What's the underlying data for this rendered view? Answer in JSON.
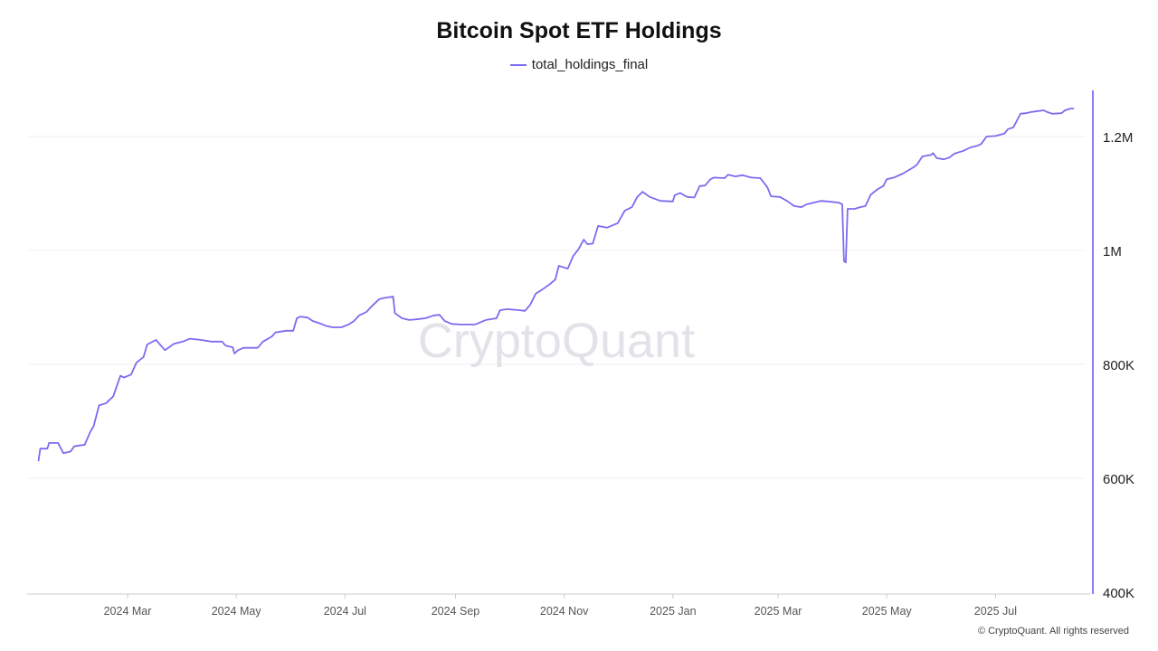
{
  "chart_data": {
    "type": "line",
    "title": "Bitcoin Spot ETF Holdings",
    "legend_position": "top-center",
    "grid": true,
    "y_axis_side": "right",
    "ylim": [
      400000,
      1280000
    ],
    "y_ticks": [
      400000,
      600000,
      800000,
      1000000,
      1200000
    ],
    "y_tick_labels": [
      "400K",
      "600K",
      "800K",
      "1M",
      "1.2M"
    ],
    "x_ticks": [
      "2024-03-01",
      "2024-05-01",
      "2024-07-01",
      "2024-09-01",
      "2024-11-01",
      "2025-01-01",
      "2025-03-01",
      "2025-05-01",
      "2025-07-01"
    ],
    "x_tick_labels": [
      "2024 Mar",
      "2024 May",
      "2024 Jul",
      "2024 Sep",
      "2024 Nov",
      "2025 Jan",
      "2025 Mar",
      "2025 May",
      "2025 Jul"
    ],
    "series": [
      {
        "name": "total_holdings_final",
        "color": "#7b6cf0",
        "points": [
          [
            "2024-01-11",
            630000
          ],
          [
            "2024-01-12",
            652000
          ],
          [
            "2024-01-16",
            652000
          ],
          [
            "2024-01-17",
            662000
          ],
          [
            "2024-01-22",
            662000
          ],
          [
            "2024-01-25",
            644000
          ],
          [
            "2024-01-29",
            647000
          ],
          [
            "2024-01-31",
            656000
          ],
          [
            "2024-02-06",
            659000
          ],
          [
            "2024-02-09",
            681000
          ],
          [
            "2024-02-11",
            692000
          ],
          [
            "2024-02-14",
            728000
          ],
          [
            "2024-02-18",
            732000
          ],
          [
            "2024-02-22",
            744000
          ],
          [
            "2024-02-26",
            780000
          ],
          [
            "2024-02-28",
            777000
          ],
          [
            "2024-03-03",
            782000
          ],
          [
            "2024-03-06",
            803000
          ],
          [
            "2024-03-10",
            813000
          ],
          [
            "2024-03-12",
            835000
          ],
          [
            "2024-03-17",
            843000
          ],
          [
            "2024-03-20",
            832000
          ],
          [
            "2024-03-22",
            825000
          ],
          [
            "2024-03-27",
            836000
          ],
          [
            "2024-04-01",
            840000
          ],
          [
            "2024-04-05",
            845000
          ],
          [
            "2024-04-11",
            843000
          ],
          [
            "2024-04-17",
            840000
          ],
          [
            "2024-04-23",
            840000
          ],
          [
            "2024-04-25",
            833000
          ],
          [
            "2024-04-29",
            830000
          ],
          [
            "2024-04-30",
            819000
          ],
          [
            "2024-05-02",
            825000
          ],
          [
            "2024-05-05",
            829000
          ],
          [
            "2024-05-13",
            829000
          ],
          [
            "2024-05-16",
            840000
          ],
          [
            "2024-05-21",
            849000
          ],
          [
            "2024-05-23",
            856000
          ],
          [
            "2024-05-29",
            859000
          ],
          [
            "2024-06-02",
            859000
          ],
          [
            "2024-06-04",
            881000
          ],
          [
            "2024-06-06",
            884000
          ],
          [
            "2024-06-10",
            882000
          ],
          [
            "2024-06-13",
            876000
          ],
          [
            "2024-06-16",
            873000
          ],
          [
            "2024-06-20",
            868000
          ],
          [
            "2024-06-24",
            865000
          ],
          [
            "2024-06-29",
            865000
          ],
          [
            "2024-07-03",
            870000
          ],
          [
            "2024-07-06",
            876000
          ],
          [
            "2024-07-09",
            886000
          ],
          [
            "2024-07-13",
            892000
          ],
          [
            "2024-07-16",
            902000
          ],
          [
            "2024-07-20",
            914000
          ],
          [
            "2024-07-22",
            916000
          ],
          [
            "2024-07-28",
            919000
          ],
          [
            "2024-07-29",
            890000
          ],
          [
            "2024-08-02",
            881000
          ],
          [
            "2024-08-06",
            878000
          ],
          [
            "2024-08-10",
            879000
          ],
          [
            "2024-08-15",
            881000
          ],
          [
            "2024-08-20",
            886000
          ],
          [
            "2024-08-23",
            887000
          ],
          [
            "2024-08-26",
            876000
          ],
          [
            "2024-08-30",
            871000
          ],
          [
            "2024-09-04",
            870000
          ],
          [
            "2024-09-12",
            870000
          ],
          [
            "2024-09-18",
            878000
          ],
          [
            "2024-09-24",
            881000
          ],
          [
            "2024-09-26",
            895000
          ],
          [
            "2024-09-30",
            897000
          ],
          [
            "2024-10-07",
            895000
          ],
          [
            "2024-10-10",
            894000
          ],
          [
            "2024-10-13",
            905000
          ],
          [
            "2024-10-16",
            924000
          ],
          [
            "2024-10-20",
            932000
          ],
          [
            "2024-10-24",
            941000
          ],
          [
            "2024-10-27",
            949000
          ],
          [
            "2024-10-29",
            973000
          ],
          [
            "2024-11-03",
            968000
          ],
          [
            "2024-11-06",
            990000
          ],
          [
            "2024-11-09",
            1002000
          ],
          [
            "2024-11-12",
            1019000
          ],
          [
            "2024-11-14",
            1011000
          ],
          [
            "2024-11-17",
            1012000
          ],
          [
            "2024-11-20",
            1043000
          ],
          [
            "2024-11-25",
            1040000
          ],
          [
            "2024-12-01",
            1048000
          ],
          [
            "2024-12-05",
            1070000
          ],
          [
            "2024-12-09",
            1076000
          ],
          [
            "2024-12-12",
            1094000
          ],
          [
            "2024-12-15",
            1103000
          ],
          [
            "2024-12-19",
            1094000
          ],
          [
            "2024-12-25",
            1087000
          ],
          [
            "2025-01-01",
            1086000
          ],
          [
            "2025-01-02",
            1097000
          ],
          [
            "2025-01-05",
            1101000
          ],
          [
            "2025-01-09",
            1094000
          ],
          [
            "2025-01-13",
            1093000
          ],
          [
            "2025-01-16",
            1113000
          ],
          [
            "2025-01-19",
            1114000
          ],
          [
            "2025-01-22",
            1125000
          ],
          [
            "2025-01-24",
            1128000
          ],
          [
            "2025-01-30",
            1127000
          ],
          [
            "2025-02-01",
            1133000
          ],
          [
            "2025-02-05",
            1130000
          ],
          [
            "2025-02-09",
            1132000
          ],
          [
            "2025-02-14",
            1128000
          ],
          [
            "2025-02-19",
            1127000
          ],
          [
            "2025-02-23",
            1111000
          ],
          [
            "2025-02-25",
            1095000
          ],
          [
            "2025-03-02",
            1094000
          ],
          [
            "2025-03-06",
            1087000
          ],
          [
            "2025-03-10",
            1078000
          ],
          [
            "2025-03-14",
            1076000
          ],
          [
            "2025-03-17",
            1081000
          ],
          [
            "2025-03-21",
            1084000
          ],
          [
            "2025-03-25",
            1087000
          ],
          [
            "2025-03-29",
            1086000
          ],
          [
            "2025-04-04",
            1084000
          ],
          [
            "2025-04-06",
            1081000
          ],
          [
            "2025-04-07",
            981000
          ],
          [
            "2025-04-08",
            979000
          ],
          [
            "2025-04-09",
            1073000
          ],
          [
            "2025-04-13",
            1073000
          ],
          [
            "2025-04-16",
            1076000
          ],
          [
            "2025-04-19",
            1078000
          ],
          [
            "2025-04-22",
            1098000
          ],
          [
            "2025-04-26",
            1108000
          ],
          [
            "2025-04-29",
            1113000
          ],
          [
            "2025-05-01",
            1125000
          ],
          [
            "2025-05-05",
            1128000
          ],
          [
            "2025-05-10",
            1135000
          ],
          [
            "2025-05-16",
            1146000
          ],
          [
            "2025-05-18",
            1151000
          ],
          [
            "2025-05-21",
            1165000
          ],
          [
            "2025-05-26",
            1168000
          ],
          [
            "2025-05-27",
            1171000
          ],
          [
            "2025-05-29",
            1162000
          ],
          [
            "2025-06-02",
            1160000
          ],
          [
            "2025-06-05",
            1163000
          ],
          [
            "2025-06-08",
            1170000
          ],
          [
            "2025-06-13",
            1175000
          ],
          [
            "2025-06-17",
            1181000
          ],
          [
            "2025-06-21",
            1184000
          ],
          [
            "2025-06-23",
            1187000
          ],
          [
            "2025-06-26",
            1200000
          ],
          [
            "2025-07-01",
            1201000
          ],
          [
            "2025-07-06",
            1205000
          ],
          [
            "2025-07-08",
            1213000
          ],
          [
            "2025-07-11",
            1216000
          ],
          [
            "2025-07-15",
            1240000
          ],
          [
            "2025-07-18",
            1241000
          ],
          [
            "2025-07-21",
            1243000
          ],
          [
            "2025-07-28",
            1246000
          ],
          [
            "2025-07-30",
            1243000
          ],
          [
            "2025-08-02",
            1240000
          ],
          [
            "2025-08-07",
            1241000
          ],
          [
            "2025-08-09",
            1246000
          ],
          [
            "2025-08-12",
            1249000
          ],
          [
            "2025-08-14",
            1249000
          ]
        ]
      }
    ]
  },
  "watermark": "CryptoQuant",
  "footer": "© CryptoQuant. All rights reserved"
}
